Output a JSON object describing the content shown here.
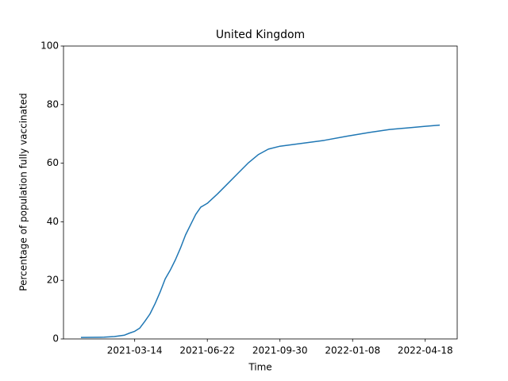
{
  "chart_data": {
    "type": "line",
    "title": "United Kingdom",
    "x_label": "Time",
    "y_label": "Percentage of population fully vaccinated",
    "x": [
      "2020-12-30",
      "2021-01-31",
      "2021-02-14",
      "2021-02-28",
      "2021-03-07",
      "2021-03-14",
      "2021-03-21",
      "2021-03-28",
      "2021-04-04",
      "2021-04-11",
      "2021-04-18",
      "2021-04-25",
      "2021-05-02",
      "2021-05-09",
      "2021-05-16",
      "2021-05-23",
      "2021-05-30",
      "2021-06-06",
      "2021-06-13",
      "2021-06-22",
      "2021-07-06",
      "2021-07-20",
      "2021-08-03",
      "2021-08-17",
      "2021-08-31",
      "2021-09-14",
      "2021-09-30",
      "2021-10-31",
      "2021-11-30",
      "2021-12-31",
      "2022-01-31",
      "2022-02-28",
      "2022-03-31",
      "2022-04-18",
      "2022-05-08"
    ],
    "series": [
      {
        "name": "United Kingdom",
        "color": "#1f77b4",
        "values": [
          0.5,
          0.6,
          0.8,
          1.3,
          2.0,
          2.6,
          3.7,
          6,
          8.5,
          12,
          16,
          20.5,
          23.5,
          27,
          31,
          35.5,
          39,
          42.5,
          45,
          46.3,
          49.5,
          53,
          56.5,
          60,
          62.9,
          64.8,
          65.8,
          66.8,
          67.8,
          69.2,
          70.5,
          71.5,
          72.2,
          72.6,
          73.0
        ]
      }
    ],
    "xlim": [
      "2020-12-06",
      "2022-06-01"
    ],
    "xticks": [
      "2021-03-14",
      "2021-06-22",
      "2021-09-30",
      "2022-01-08",
      "2022-04-18"
    ],
    "ylim": [
      0,
      100
    ],
    "yticks": [
      0,
      20,
      40,
      60,
      80,
      100
    ],
    "grid": false
  }
}
